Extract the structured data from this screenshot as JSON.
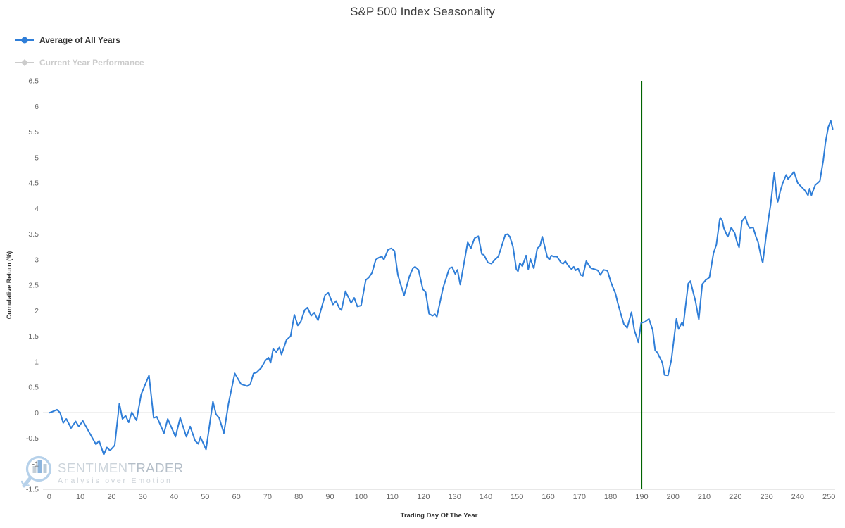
{
  "title": "S&P 500 Index Seasonality",
  "legend": [
    {
      "label": "Average of All Years",
      "color": "#2f7ed8",
      "marker": "circle",
      "enabled": true
    },
    {
      "label": "Current Year Performance",
      "color": "#cccccc",
      "marker": "diamond",
      "enabled": false
    }
  ],
  "watermark": {
    "brand_first": "SENTIMEN",
    "brand_second": "TRADER",
    "tagline": "Analysis over Emotion"
  },
  "colors": {
    "series_line": "#2f7ed8",
    "vline_green": "#006400",
    "zero_gridline": "#e0e0e0",
    "axis_line": "#d0d0d0",
    "tick_text": "#666666",
    "axis_title_text": "#333333",
    "title_text": "#3c3c3c"
  },
  "chart_data": {
    "type": "line",
    "title": "S&P 500 Index Seasonality",
    "xlabel": "Trading Day Of The Year",
    "ylabel": "Cumulative Return (%)",
    "xlim": [
      -2,
      252
    ],
    "ylim": [
      -1.5,
      6.5
    ],
    "x_ticks": [
      0,
      10,
      20,
      30,
      40,
      50,
      60,
      70,
      80,
      90,
      100,
      110,
      120,
      130,
      140,
      150,
      160,
      170,
      180,
      190,
      200,
      210,
      220,
      230,
      240,
      250
    ],
    "y_ticks": [
      -1.5,
      -1,
      -0.5,
      0,
      0.5,
      1,
      1.5,
      2,
      2.5,
      3,
      3.5,
      4,
      4.5,
      5,
      5.5,
      6,
      6.5
    ],
    "grid": "zero-line-only",
    "legend_position": "top-left-vertical",
    "vline": {
      "x": 190,
      "color": "#006400"
    },
    "series": [
      {
        "name": "Average of All Years",
        "color": "#2f7ed8",
        "points": [
          [
            0,
            0
          ],
          [
            1,
            0.02
          ],
          [
            2.5,
            0.06
          ],
          [
            3.5,
            0
          ],
          [
            4.5,
            -0.2
          ],
          [
            5.5,
            -0.12
          ],
          [
            7,
            -0.3
          ],
          [
            8.5,
            -0.17
          ],
          [
            9.5,
            -0.27
          ],
          [
            10.8,
            -0.16
          ],
          [
            13,
            -0.4
          ],
          [
            15,
            -0.62
          ],
          [
            16,
            -0.55
          ],
          [
            17.5,
            -0.82
          ],
          [
            18.5,
            -0.68
          ],
          [
            19.5,
            -0.74
          ],
          [
            21,
            -0.64
          ],
          [
            22.5,
            0.18
          ],
          [
            23.5,
            -0.12
          ],
          [
            24.5,
            -0.06
          ],
          [
            25.5,
            -0.19
          ],
          [
            26.5,
            0.01
          ],
          [
            28,
            -0.15
          ],
          [
            29.5,
            0.36
          ],
          [
            32,
            0.73
          ],
          [
            33.5,
            -0.1
          ],
          [
            34.5,
            -0.08
          ],
          [
            36.8,
            -0.4
          ],
          [
            38,
            -0.12
          ],
          [
            40.5,
            -0.47
          ],
          [
            42,
            -0.1
          ],
          [
            44,
            -0.47
          ],
          [
            45.2,
            -0.27
          ],
          [
            46.8,
            -0.55
          ],
          [
            47.8,
            -0.61
          ],
          [
            48.5,
            -0.48
          ],
          [
            50.3,
            -0.72
          ],
          [
            52.5,
            0.22
          ],
          [
            53.5,
            -0.03
          ],
          [
            54.5,
            -0.1
          ],
          [
            56,
            -0.4
          ],
          [
            57.5,
            0.18
          ],
          [
            59.5,
            0.77
          ],
          [
            61.5,
            0.56
          ],
          [
            63.5,
            0.52
          ],
          [
            64.5,
            0.56
          ],
          [
            65.5,
            0.77
          ],
          [
            66.5,
            0.79
          ],
          [
            68,
            0.88
          ],
          [
            69.3,
            1.02
          ],
          [
            70.3,
            1.08
          ],
          [
            71,
            0.98
          ],
          [
            71.8,
            1.25
          ],
          [
            72.8,
            1.19
          ],
          [
            73.8,
            1.28
          ],
          [
            74.5,
            1.14
          ],
          [
            76.1,
            1.43
          ],
          [
            77.4,
            1.5
          ],
          [
            78.6,
            1.92
          ],
          [
            79.7,
            1.71
          ],
          [
            80.7,
            1.79
          ],
          [
            81.9,
            2.01
          ],
          [
            82.8,
            2.06
          ],
          [
            84,
            1.9
          ],
          [
            85,
            1.96
          ],
          [
            86.2,
            1.81
          ],
          [
            88.5,
            2.31
          ],
          [
            89.5,
            2.35
          ],
          [
            91,
            2.12
          ],
          [
            92,
            2.19
          ],
          [
            93,
            2.05
          ],
          [
            93.7,
            2.01
          ],
          [
            95,
            2.38
          ],
          [
            96.8,
            2.15
          ],
          [
            97.8,
            2.25
          ],
          [
            98.8,
            2.08
          ],
          [
            100,
            2.1
          ],
          [
            101.5,
            2.6
          ],
          [
            102.5,
            2.65
          ],
          [
            103.5,
            2.74
          ],
          [
            104.7,
            3.0
          ],
          [
            105.7,
            3.04
          ],
          [
            106.7,
            3.06
          ],
          [
            107.3,
            3.0
          ],
          [
            108.7,
            3.2
          ],
          [
            109.7,
            3.22
          ],
          [
            110.7,
            3.17
          ],
          [
            111.8,
            2.7
          ],
          [
            112.6,
            2.53
          ],
          [
            113.8,
            2.3
          ],
          [
            115.5,
            2.67
          ],
          [
            116.6,
            2.83
          ],
          [
            117.3,
            2.86
          ],
          [
            118.4,
            2.8
          ],
          [
            119.8,
            2.42
          ],
          [
            120.7,
            2.36
          ],
          [
            121.8,
            1.94
          ],
          [
            122.9,
            1.9
          ],
          [
            123.7,
            1.93
          ],
          [
            124.3,
            1.88
          ],
          [
            126.3,
            2.45
          ],
          [
            128.3,
            2.83
          ],
          [
            129.2,
            2.85
          ],
          [
            130.2,
            2.72
          ],
          [
            130.9,
            2.8
          ],
          [
            131.8,
            2.51
          ],
          [
            134.2,
            3.34
          ],
          [
            135.2,
            3.22
          ],
          [
            136.4,
            3.42
          ],
          [
            137.6,
            3.46
          ],
          [
            138.7,
            3.11
          ],
          [
            139.4,
            3.09
          ],
          [
            140.7,
            2.94
          ],
          [
            141.8,
            2.92
          ],
          [
            142.9,
            3.0
          ],
          [
            144,
            3.06
          ],
          [
            146.2,
            3.48
          ],
          [
            146.9,
            3.5
          ],
          [
            147.7,
            3.45
          ],
          [
            148.7,
            3.25
          ],
          [
            149.8,
            2.81
          ],
          [
            150.3,
            2.77
          ],
          [
            150.9,
            2.93
          ],
          [
            151.7,
            2.87
          ],
          [
            152.9,
            3.08
          ],
          [
            153.6,
            2.81
          ],
          [
            154.3,
            3.01
          ],
          [
            155.4,
            2.83
          ],
          [
            156.5,
            3.22
          ],
          [
            157.4,
            3.27
          ],
          [
            158.1,
            3.45
          ],
          [
            159.7,
            3.05
          ],
          [
            160.4,
            3.0
          ],
          [
            161,
            3.08
          ],
          [
            161.8,
            3.06
          ],
          [
            162.8,
            3.06
          ],
          [
            164.1,
            2.94
          ],
          [
            164.8,
            2.92
          ],
          [
            165.5,
            2.97
          ],
          [
            166.2,
            2.9
          ],
          [
            167.5,
            2.81
          ],
          [
            168.2,
            2.86
          ],
          [
            168.8,
            2.79
          ],
          [
            169.6,
            2.83
          ],
          [
            170.4,
            2.7
          ],
          [
            171.1,
            2.68
          ],
          [
            172.2,
            2.97
          ],
          [
            172.9,
            2.9
          ],
          [
            173.8,
            2.83
          ],
          [
            174.9,
            2.81
          ],
          [
            175.9,
            2.79
          ],
          [
            176.7,
            2.7
          ],
          [
            177.8,
            2.8
          ],
          [
            179,
            2.78
          ],
          [
            180.1,
            2.56
          ],
          [
            181,
            2.42
          ],
          [
            181.6,
            2.33
          ],
          [
            182.3,
            2.15
          ],
          [
            183.4,
            1.91
          ],
          [
            184.3,
            1.73
          ],
          [
            185,
            1.69
          ],
          [
            185.3,
            1.66
          ],
          [
            186.7,
            1.97
          ],
          [
            187.6,
            1.62
          ],
          [
            188.9,
            1.38
          ],
          [
            189.8,
            1.76
          ],
          [
            191,
            1.78
          ],
          [
            192.3,
            1.84
          ],
          [
            193.5,
            1.62
          ],
          [
            194.3,
            1.22
          ],
          [
            195,
            1.18
          ],
          [
            196.6,
            0.98
          ],
          [
            197.3,
            0.74
          ],
          [
            198.4,
            0.73
          ],
          [
            199.5,
            1.04
          ],
          [
            201.1,
            1.84
          ],
          [
            201.8,
            1.64
          ],
          [
            202.9,
            1.77
          ],
          [
            203.3,
            1.71
          ],
          [
            204.9,
            2.53
          ],
          [
            205.6,
            2.58
          ],
          [
            206.4,
            2.38
          ],
          [
            207.2,
            2.19
          ],
          [
            208.3,
            1.83
          ],
          [
            209.4,
            2.52
          ],
          [
            210.5,
            2.6
          ],
          [
            211.7,
            2.65
          ],
          [
            213,
            3.13
          ],
          [
            213.9,
            3.29
          ],
          [
            215,
            3.79
          ],
          [
            215.2,
            3.82
          ],
          [
            215.8,
            3.76
          ],
          [
            216.3,
            3.62
          ],
          [
            217.2,
            3.49
          ],
          [
            217.6,
            3.45
          ],
          [
            218.7,
            3.63
          ],
          [
            219.8,
            3.52
          ],
          [
            220.5,
            3.35
          ],
          [
            221.2,
            3.24
          ],
          [
            222.1,
            3.75
          ],
          [
            223.2,
            3.84
          ],
          [
            223.9,
            3.7
          ],
          [
            224.6,
            3.62
          ],
          [
            225.7,
            3.63
          ],
          [
            226.6,
            3.45
          ],
          [
            227.3,
            3.34
          ],
          [
            228.4,
            3.01
          ],
          [
            228.8,
            2.94
          ],
          [
            229.9,
            3.48
          ],
          [
            230.6,
            3.79
          ],
          [
            231.3,
            4.07
          ],
          [
            232.2,
            4.55
          ],
          [
            232.5,
            4.7
          ],
          [
            233.3,
            4.21
          ],
          [
            233.6,
            4.13
          ],
          [
            234.4,
            4.34
          ],
          [
            235.2,
            4.5
          ],
          [
            236.3,
            4.66
          ],
          [
            236.9,
            4.58
          ],
          [
            237.5,
            4.62
          ],
          [
            238.8,
            4.72
          ],
          [
            240,
            4.5
          ],
          [
            241.1,
            4.43
          ],
          [
            242.2,
            4.36
          ],
          [
            243.3,
            4.26
          ],
          [
            243.8,
            4.39
          ],
          [
            244.4,
            4.26
          ],
          [
            245.6,
            4.46
          ],
          [
            246.4,
            4.5
          ],
          [
            247.1,
            4.54
          ],
          [
            248.2,
            4.95
          ],
          [
            248.9,
            5.3
          ],
          [
            249.8,
            5.6
          ],
          [
            250.6,
            5.72
          ],
          [
            251.2,
            5.56
          ]
        ]
      }
    ],
    "hidden_series": [
      {
        "name": "Current Year Performance",
        "color": "#cccccc",
        "visible": false
      }
    ]
  }
}
